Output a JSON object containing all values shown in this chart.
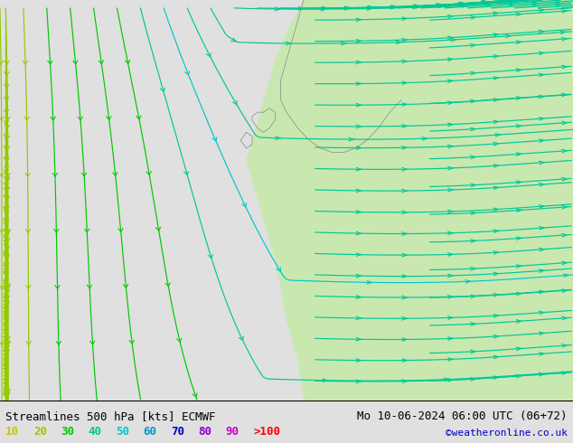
{
  "title_left": "Streamlines 500 hPa [kts] ECMWF",
  "title_right": "Mo 10-06-2024 06:00 UTC (06+72)",
  "credit": "©weatheronline.co.uk",
  "legend_values": [
    "10",
    "20",
    "30",
    "40",
    "50",
    "60",
    "70",
    "80",
    "90",
    ">100"
  ],
  "legend_colors": [
    "#c8c800",
    "#96c800",
    "#00c800",
    "#00c896",
    "#00c8c8",
    "#0096c8",
    "#0000c8",
    "#9600c8",
    "#c800c8",
    "#ff0000"
  ],
  "background_color": "#e0e0e0",
  "land_color": "#c8e8b0",
  "fig_width": 6.34,
  "fig_height": 4.9,
  "dpi": 100,
  "bottom_bar_color": "#ffffff",
  "text_color": "#000000",
  "font_size_title": 9,
  "font_size_legend": 9,
  "font_size_credit": 8
}
